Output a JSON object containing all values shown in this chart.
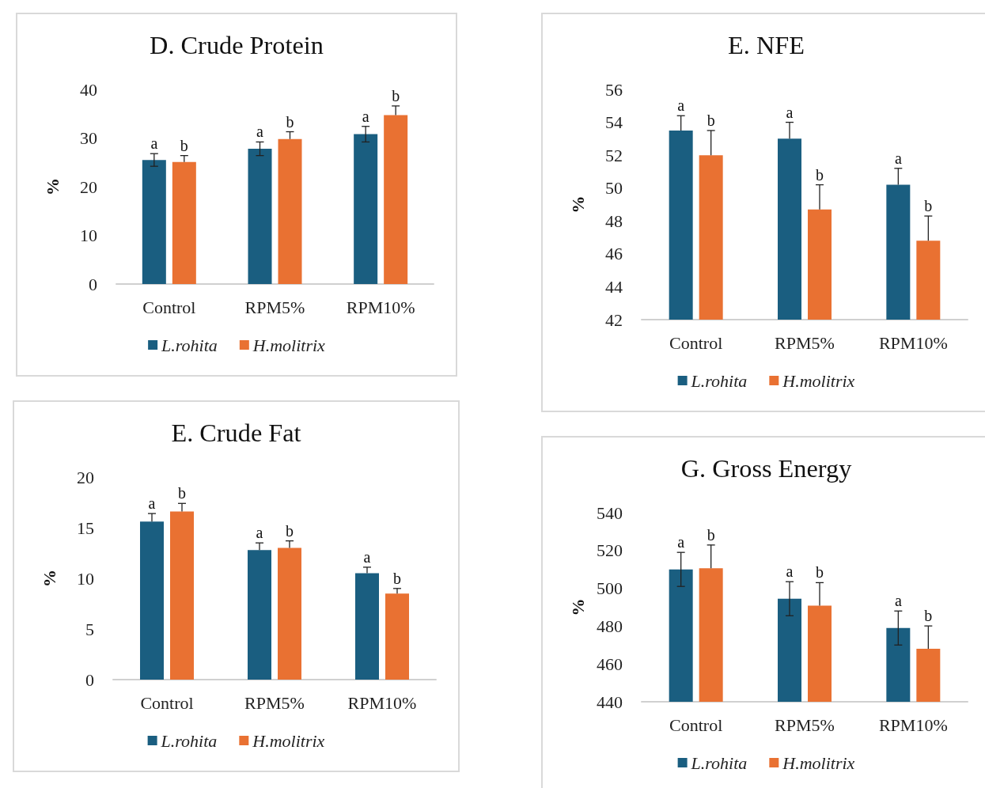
{
  "chart_data": [
    {
      "type": "bar",
      "title": "D. Crude Protein",
      "ylabel": "%",
      "categories": [
        "Control",
        "RPM5%",
        "RPM10%"
      ],
      "ylim": [
        0,
        40
      ],
      "yticks": [
        0,
        10,
        20,
        30,
        40
      ],
      "grid": false,
      "legend": "bottom",
      "series": [
        {
          "name": "L.rohita",
          "color": "#1a5e80",
          "values": [
            25.5,
            27.8,
            30.8
          ],
          "errors": [
            1.3,
            1.4,
            1.6
          ],
          "value_labels": [
            "a",
            "a",
            "a"
          ]
        },
        {
          "name": "H.molitrix",
          "color": "#e97132",
          "values": [
            25.1,
            29.8,
            34.7
          ],
          "errors": [
            [
              25.1,
              26.4
            ],
            [
              29.8,
              31.3
            ],
            [
              34.7,
              36.6
            ]
          ],
          "value_labels": [
            "b",
            "b",
            "b"
          ]
        }
      ]
    },
    {
      "type": "bar",
      "title": "E. NFE",
      "ylabel": "%",
      "categories": [
        "Control",
        "RPM5%",
        "RPM10%"
      ],
      "ylim": [
        42,
        56
      ],
      "yticks": [
        42,
        44,
        46,
        48,
        50,
        52,
        54,
        56
      ],
      "grid": false,
      "legend": "bottom",
      "series": [
        {
          "name": "L.rohita",
          "color": "#1a5e80",
          "values": [
            53.5,
            53.0,
            50.2
          ],
          "errors": [
            [
              53.5,
              54.4
            ],
            [
              53.0,
              54.0
            ],
            [
              50.2,
              51.2
            ]
          ],
          "value_labels": [
            "a",
            "a",
            "a"
          ]
        },
        {
          "name": "H.molitrix",
          "color": "#e97132",
          "values": [
            52.0,
            48.7,
            46.8
          ],
          "errors": [
            [
              52.0,
              53.5
            ],
            [
              48.7,
              50.2
            ],
            [
              46.8,
              48.3
            ]
          ],
          "value_labels": [
            "b",
            "b",
            "b"
          ]
        }
      ]
    },
    {
      "type": "bar",
      "title": "E. Crude Fat",
      "ylabel": "%",
      "categories": [
        "Control",
        "RPM5%",
        "RPM10%"
      ],
      "ylim": [
        0,
        20
      ],
      "yticks": [
        0,
        5,
        10,
        15,
        20
      ],
      "grid": false,
      "legend": "bottom",
      "series": [
        {
          "name": "L.rohita",
          "color": "#1a5e80",
          "values": [
            15.6,
            12.8,
            10.5
          ],
          "errors": [
            [
              15.6,
              16.4
            ],
            [
              12.8,
              13.5
            ],
            [
              10.5,
              11.1
            ]
          ],
          "value_labels": [
            "a",
            "a",
            "a"
          ]
        },
        {
          "name": "H.molitrix",
          "color": "#e97132",
          "values": [
            16.6,
            13.0,
            8.5
          ],
          "errors": [
            [
              16.6,
              17.4
            ],
            [
              13.0,
              13.7
            ],
            [
              8.5,
              9.0
            ]
          ],
          "value_labels": [
            "b",
            "b",
            "b"
          ]
        }
      ]
    },
    {
      "type": "bar",
      "title": "G. Gross Energy",
      "ylabel": "%",
      "categories": [
        "Control",
        "RPM5%",
        "RPM10%"
      ],
      "ylim": [
        440,
        540
      ],
      "yticks": [
        440,
        460,
        480,
        500,
        520,
        540
      ],
      "grid": false,
      "legend": "bottom",
      "series": [
        {
          "name": "L.rohita",
          "color": "#1a5e80",
          "values": [
            510,
            494.5,
            479
          ],
          "errors": [
            9,
            9,
            9
          ],
          "value_labels": [
            "a",
            "a",
            "a"
          ]
        },
        {
          "name": "H.molitrix",
          "color": "#e97132",
          "values": [
            510.6,
            490.8,
            468
          ],
          "errors": [
            [
              510.6,
              522.9
            ],
            [
              490.8,
              503
            ],
            [
              468,
              480.1
            ]
          ],
          "value_labels": [
            "b",
            "b",
            "b"
          ]
        }
      ]
    }
  ]
}
